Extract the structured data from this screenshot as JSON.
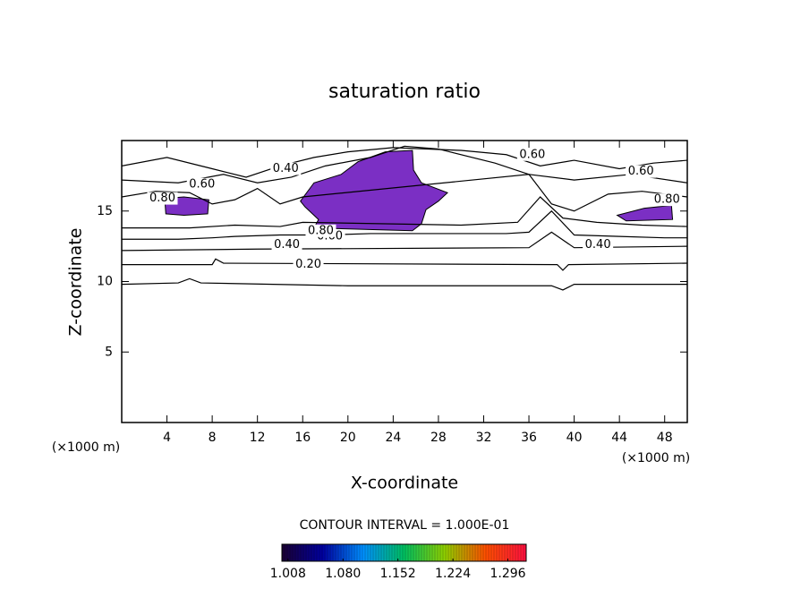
{
  "chart_data": {
    "type": "contour",
    "title": "saturation ratio",
    "x_label": "X-coordinate",
    "y_label": "Z-coordinate",
    "x_unit": "(×1000 m)",
    "y_unit": "(×1000 m)",
    "note": "CONTOUR INTERVAL = 1.000E-01",
    "xlim": [
      0,
      50
    ],
    "ylim": [
      0,
      20
    ],
    "xticks": [
      4,
      8,
      12,
      16,
      20,
      24,
      28,
      32,
      36,
      40,
      44,
      48
    ],
    "yticks": [
      5,
      10,
      15
    ],
    "line_color": "#000000",
    "fill_color": "#7b2fc4",
    "contours": [
      {
        "x": [
          0,
          5,
          6,
          7,
          20,
          38,
          39,
          40,
          50
        ],
        "y": [
          9.8,
          9.9,
          10.2,
          9.9,
          9.7,
          9.7,
          9.4,
          9.8,
          9.8
        ]
      },
      {
        "x": [
          0,
          8,
          8.3,
          9,
          38.5,
          39,
          39.5,
          50
        ],
        "y": [
          11.2,
          11.2,
          11.6,
          11.3,
          11.2,
          10.8,
          11.2,
          11.3
        ]
      },
      {
        "x": [
          0,
          12,
          36,
          38,
          40,
          50
        ],
        "y": [
          12.2,
          12.3,
          12.4,
          13.5,
          12.4,
          12.5
        ]
      },
      {
        "x": [
          0,
          5,
          8,
          10,
          14,
          18,
          22,
          26,
          30,
          34,
          36,
          38,
          40,
          44,
          48,
          50
        ],
        "y": [
          13.0,
          13.0,
          13.1,
          13.2,
          13.3,
          13.3,
          13.4,
          13.4,
          13.4,
          13.4,
          13.5,
          15.0,
          13.3,
          13.2,
          13.1,
          13.1
        ]
      },
      {
        "x": [
          0,
          6,
          10,
          14,
          16,
          30,
          35,
          37,
          39,
          42,
          46,
          50
        ],
        "y": [
          13.8,
          13.8,
          14.0,
          13.9,
          14.2,
          14.0,
          14.2,
          16.0,
          14.5,
          14.2,
          14.0,
          13.9
        ]
      },
      {
        "x": [
          0,
          3,
          6,
          8,
          10,
          12,
          14,
          16,
          36,
          38,
          40,
          43,
          46,
          50
        ],
        "y": [
          16.0,
          16.4,
          16.3,
          15.5,
          15.8,
          16.6,
          15.5,
          16.0,
          17.6,
          15.5,
          15.0,
          16.2,
          16.4,
          16.0
        ]
      },
      {
        "x": [
          0,
          5,
          9,
          12,
          15,
          18,
          22,
          25,
          28,
          33,
          36,
          40,
          45,
          50
        ],
        "y": [
          17.2,
          17.0,
          17.6,
          17.0,
          17.4,
          18.2,
          18.8,
          19.6,
          19.4,
          18.4,
          17.6,
          17.2,
          17.6,
          17.0
        ]
      },
      {
        "x": [
          0,
          4,
          8,
          11,
          14,
          17,
          20,
          24,
          30,
          34,
          37,
          40,
          44,
          47,
          50
        ],
        "y": [
          18.2,
          18.8,
          18.0,
          17.4,
          18.2,
          18.8,
          19.2,
          19.5,
          19.3,
          19.0,
          18.2,
          18.6,
          18.0,
          18.4,
          18.6
        ]
      }
    ],
    "contour_labels": [
      {
        "level": 0.2,
        "label": "0.20",
        "x": 16.5,
        "y": 11.2
      },
      {
        "level": 0.4,
        "label": "0.40",
        "x": 14.6,
        "y": 12.6
      },
      {
        "level": 0.4,
        "label": "0.40",
        "x": 42.1,
        "y": 12.6
      },
      {
        "level": 0.4,
        "label": "0.40",
        "x": 14.5,
        "y": 18.0
      },
      {
        "level": 0.6,
        "label": "0.60",
        "x": 36.3,
        "y": 19.0
      },
      {
        "level": 0.6,
        "label": "0.60",
        "x": 45.9,
        "y": 17.8
      },
      {
        "level": 0.6,
        "label": "0.60",
        "x": 7.1,
        "y": 16.9
      },
      {
        "level": 0.6,
        "label": "0.60",
        "x": 18.4,
        "y": 13.2
      },
      {
        "level": 0.8,
        "label": "0.80",
        "x": 3.6,
        "y": 15.9
      },
      {
        "level": 0.8,
        "label": "0.80",
        "x": 48.2,
        "y": 15.8
      },
      {
        "level": 0.8,
        "label": "0.80",
        "x": 17.6,
        "y": 13.6
      }
    ],
    "filled_regions": [
      {
        "x": [
          3.8,
          5.5,
          7.7,
          7.6,
          5.5,
          3.9
        ],
        "y": [
          15.9,
          16.0,
          15.8,
          14.8,
          14.7,
          14.8
        ]
      },
      {
        "x": [
          15.8,
          17.0,
          19.4,
          20.9,
          23.3,
          25.7,
          25.8,
          26.5,
          28.8,
          28.0,
          26.9,
          26.5,
          25.7,
          17.0,
          17.4,
          16.2
        ],
        "y": [
          15.7,
          17.0,
          17.6,
          18.5,
          19.2,
          19.3,
          17.9,
          17.0,
          16.3,
          15.7,
          15.1,
          14.1,
          13.6,
          13.8,
          14.4,
          15.3
        ]
      },
      {
        "x": [
          43.8,
          46.2,
          48.6,
          48.7,
          44.6
        ],
        "y": [
          14.7,
          15.2,
          15.4,
          14.4,
          14.3
        ]
      }
    ],
    "colorbar": {
      "lim": [
        1.0,
        1.32
      ],
      "ticks": [
        1.008,
        {
          "value": 1.08,
          "label": "1.080"
        },
        1.152,
        1.224,
        1.296
      ],
      "colors": [
        "#1a0033",
        "#0000a0",
        "#0090ff",
        "#00c060",
        "#90d000",
        "#ff5000",
        "#ff1040"
      ]
    }
  }
}
